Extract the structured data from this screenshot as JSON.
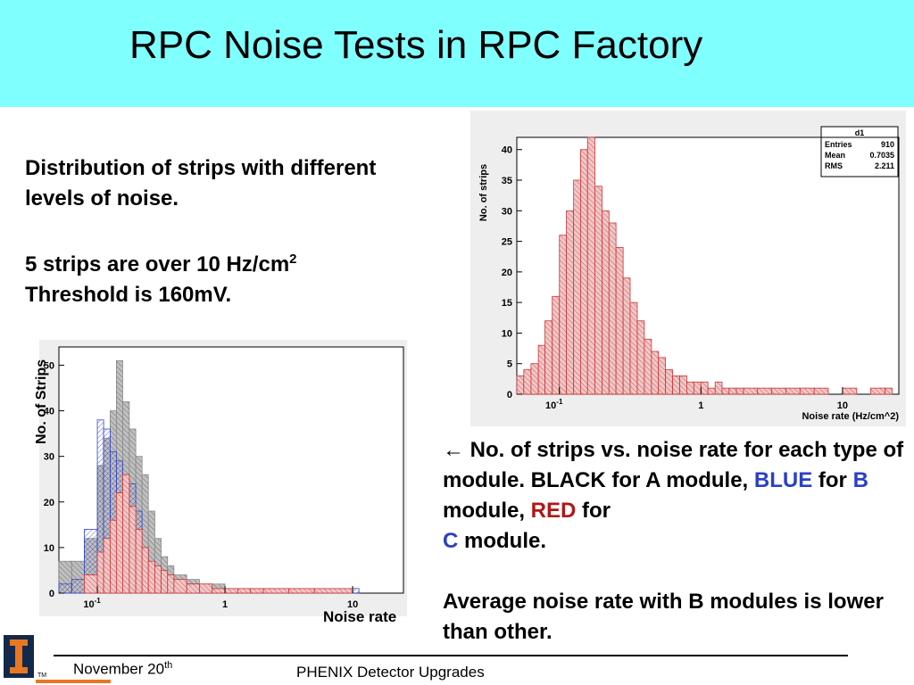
{
  "slide": {
    "title": "RPC Noise Tests in RPC Factory",
    "left_text": {
      "line1": "Distribution of strips with different levels of noise.",
      "line2_main": "5 strips are over 10 Hz/cm",
      "line2_sup": "2",
      "line3": "Threshold is 160mV."
    },
    "right_text": {
      "arrow": "←",
      "p1_part1": "No. of strips vs. noise rate for each type of module. BLACK for A module, ",
      "blue_word": "BLUE",
      "p1_part2": " for ",
      "b_letter": "B",
      "p1_part3": " module, ",
      "red_word": "RED",
      "p1_part4": " for ",
      "c_letter": "C",
      "p1_part5": " module.",
      "p2": "Average noise rate with B modules is lower than other."
    },
    "left_chart_labels": {
      "ylabel": "No. of Strips",
      "xlabel": "Noise rate"
    },
    "footer": {
      "date_main": "November 20",
      "date_sup": "th",
      "center": "PHENIX Detector Upgrades",
      "logo_tm": "TM"
    },
    "colors": {
      "title_bg": "#80ffff",
      "blue": "#2a3fc8",
      "red": "#b01818",
      "logo": "#13294b",
      "logo_accent": "#e87722"
    }
  },
  "chart_data": [
    {
      "type": "bar",
      "name": "d1",
      "xlabel": "Noise rate (Hz/cm^2)",
      "ylabel": "No. of strips",
      "xscale": "log",
      "xlim": [
        0.05,
        25
      ],
      "ylim": [
        0,
        42
      ],
      "xticks": [
        "10^-1",
        "1",
        "10"
      ],
      "yticks": [
        0,
        5,
        10,
        15,
        20,
        25,
        30,
        35,
        40
      ],
      "stats": {
        "title": "d1",
        "Entries": "910",
        "Mean": "0.7035",
        "RMS": "2.211"
      },
      "series": [
        {
          "style": "red-hatched",
          "color": "#cc3333",
          "x": [
            0.05,
            0.056,
            0.063,
            0.071,
            0.079,
            0.089,
            0.1,
            0.112,
            0.126,
            0.141,
            0.158,
            0.178,
            0.2,
            0.224,
            0.251,
            0.282,
            0.316,
            0.355,
            0.398,
            0.447,
            0.501,
            0.562,
            0.631,
            0.708,
            0.794,
            0.891,
            1.0,
            1.12,
            1.26,
            1.41,
            1.58,
            1.78,
            2.0,
            2.51,
            3.16,
            3.98,
            5.01,
            6.31,
            7.94,
            10.0,
            12.6,
            15.8,
            20.0
          ],
          "values": [
            3,
            4,
            5,
            8,
            12,
            16,
            26,
            30,
            35,
            40,
            42,
            34,
            30,
            28,
            24,
            19,
            15,
            12,
            9,
            7,
            6,
            4,
            3,
            3,
            2,
            2,
            2,
            1,
            2,
            1,
            1,
            1,
            1,
            1,
            1,
            1,
            1,
            1,
            0,
            1,
            0,
            1,
            1
          ]
        }
      ]
    },
    {
      "type": "bar",
      "xlabel": "Noise rate",
      "ylabel": "No. of Strips",
      "xscale": "log",
      "xlim": [
        0.05,
        25
      ],
      "ylim": [
        0,
        54
      ],
      "xticks": [
        "10^-1",
        "1",
        "10"
      ],
      "yticks": [
        0,
        10,
        20,
        30,
        40,
        50
      ],
      "series": [
        {
          "style": "black-hatched",
          "color": "#888888",
          "x": [
            0.05,
            0.063,
            0.079,
            0.1,
            0.112,
            0.126,
            0.141,
            0.158,
            0.178,
            0.2,
            0.224,
            0.251,
            0.282,
            0.316,
            0.355,
            0.398,
            0.501,
            0.631,
            0.794,
            1.0,
            1.26,
            1.58,
            2.0,
            3.16,
            5.01
          ],
          "values": [
            7,
            7,
            12,
            28,
            34,
            40,
            51,
            42,
            36,
            30,
            26,
            18,
            12,
            8,
            6,
            4,
            3,
            2,
            2,
            1,
            1,
            1,
            1,
            1,
            0
          ]
        },
        {
          "style": "blue-hatched",
          "color": "#3344cc",
          "x": [
            0.05,
            0.063,
            0.079,
            0.1,
            0.112,
            0.126,
            0.141,
            0.158,
            0.178,
            0.2,
            0.224,
            0.251,
            0.282,
            0.316,
            0.355,
            0.398,
            0.501,
            0.631,
            0.794,
            1.0,
            1.26,
            1.58,
            2.0,
            3.16,
            5.01,
            10.0
          ],
          "values": [
            2,
            3,
            14,
            38,
            36,
            31,
            29,
            20,
            24,
            18,
            10,
            6,
            5,
            4,
            3,
            2,
            2,
            1,
            1,
            1,
            1,
            1,
            1,
            1,
            1,
            1
          ]
        },
        {
          "style": "red-hatched",
          "color": "#cc3333",
          "x": [
            0.05,
            0.063,
            0.079,
            0.1,
            0.112,
            0.126,
            0.141,
            0.158,
            0.178,
            0.2,
            0.224,
            0.251,
            0.282,
            0.316,
            0.355,
            0.398,
            0.501,
            0.631,
            0.794,
            1.0,
            1.26,
            1.58,
            2.0,
            3.16,
            5.01,
            10.0
          ],
          "values": [
            0,
            0,
            4,
            9,
            12,
            16,
            22,
            26,
            19,
            14,
            10,
            7,
            6,
            5,
            4,
            3,
            2,
            2,
            1,
            1,
            1,
            1,
            1,
            1,
            1,
            0
          ]
        }
      ]
    }
  ]
}
